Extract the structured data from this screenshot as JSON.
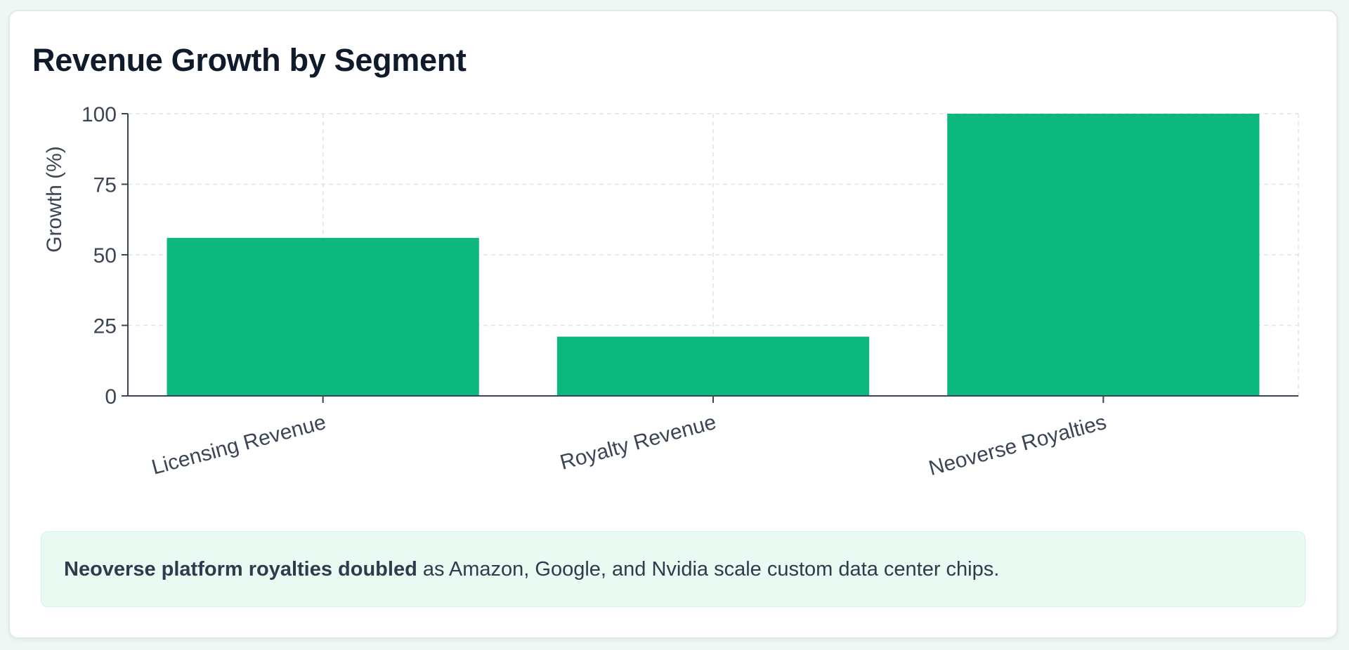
{
  "chart_data": {
    "type": "bar",
    "title": "Revenue Growth by Segment",
    "ylabel": "Growth (%)",
    "xlabel": "",
    "categories": [
      "Licensing Revenue",
      "Royalty Revenue",
      "Neoverse Royalties"
    ],
    "values": [
      56,
      21,
      100
    ],
    "ylim": [
      0,
      100
    ],
    "yticks": [
      0,
      25,
      50,
      75,
      100
    ],
    "grid": true,
    "bar_color": "#0db87e",
    "grid_color": "#dfe3e6",
    "axis_color": "#3b4554"
  },
  "callout": {
    "bold": "Neoverse platform royalties doubled",
    "text": "as Amazon, Google, and Nvidia scale custom data center chips."
  }
}
